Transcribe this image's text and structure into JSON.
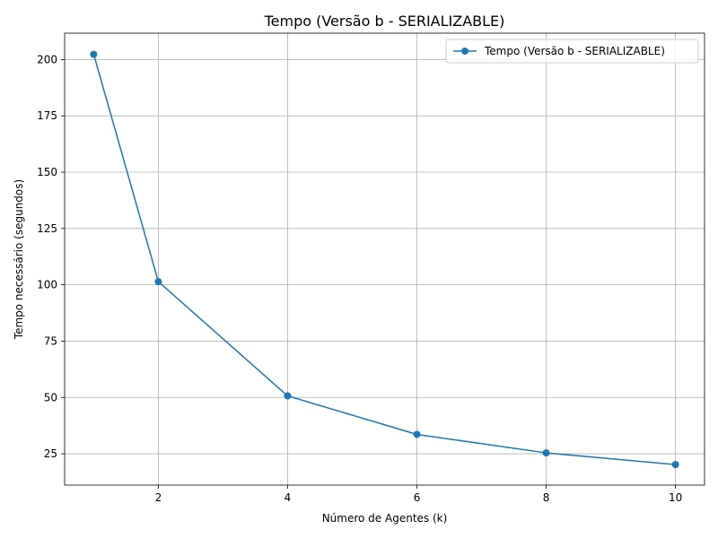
{
  "chart_data": {
    "type": "line",
    "title": "Tempo (Versão b - SERIALIZABLE)",
    "xlabel": "Número de Agentes (k)",
    "ylabel": "Tempo necessário (segundos)",
    "xlim": [
      0.55,
      10.45
    ],
    "ylim": [
      11.1,
      211.7
    ],
    "xticks": [
      2,
      4,
      6,
      8,
      10
    ],
    "yticks": [
      25,
      50,
      75,
      100,
      125,
      150,
      175,
      200
    ],
    "grid": true,
    "legend_position": "top-right",
    "series": [
      {
        "name": "Tempo (Versão b - SERIALIZABLE)",
        "color": "#1f77b4",
        "marker": "circle",
        "x": [
          1,
          2,
          4,
          6,
          8,
          10
        ],
        "y": [
          202.3,
          101.4,
          50.7,
          33.6,
          25.4,
          20.2
        ]
      }
    ]
  }
}
